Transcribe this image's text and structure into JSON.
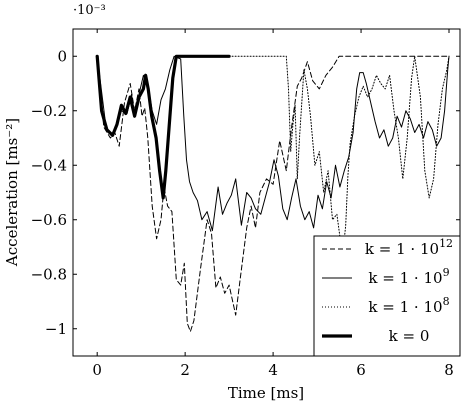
{
  "chart_data": {
    "type": "line",
    "title": "",
    "xlabel": "Time [ms]",
    "ylabel": "Acceleration [ms⁻²]",
    "y_scale_note": "·10⁻³",
    "xlim": [
      -0.55,
      8.25
    ],
    "ylim": [
      -1.1,
      0.1
    ],
    "x_ticks": [
      {
        "value": 0,
        "label": "0"
      },
      {
        "value": 2,
        "label": "2"
      },
      {
        "value": 4,
        "label": "4"
      },
      {
        "value": 6,
        "label": "6"
      },
      {
        "value": 8,
        "label": "8"
      }
    ],
    "y_ticks": [
      {
        "value": 0,
        "label": "0"
      },
      {
        "value": -0.2,
        "label": "−0.2"
      },
      {
        "value": -0.4,
        "label": "−0.4"
      },
      {
        "value": -0.6,
        "label": "−0.6"
      },
      {
        "value": -0.8,
        "label": "−0.8"
      },
      {
        "value": -1,
        "label": "−1"
      }
    ],
    "legend_position": "bottom-right",
    "series": [
      {
        "name": "k = 1 · 10¹²",
        "legend_text": "k = 1 · 10",
        "legend_exponent": "12",
        "style": "dashed",
        "color": "#000000",
        "points": [
          [
            0,
            0
          ],
          [
            0.15,
            -0.26
          ],
          [
            0.3,
            -0.3
          ],
          [
            0.4,
            -0.28
          ],
          [
            0.5,
            -0.33
          ],
          [
            0.62,
            -0.17
          ],
          [
            0.75,
            -0.1
          ],
          [
            0.85,
            -0.2
          ],
          [
            0.95,
            -0.12
          ],
          [
            1.02,
            -0.22
          ],
          [
            1.08,
            -0.19
          ],
          [
            1.15,
            -0.3
          ],
          [
            1.25,
            -0.55
          ],
          [
            1.35,
            -0.67
          ],
          [
            1.45,
            -0.6
          ],
          [
            1.52,
            -0.48
          ],
          [
            1.6,
            -0.55
          ],
          [
            1.7,
            -0.57
          ],
          [
            1.8,
            -0.82
          ],
          [
            1.9,
            -0.84
          ],
          [
            1.98,
            -0.76
          ],
          [
            2.05,
            -0.98
          ],
          [
            2.12,
            -1.01
          ],
          [
            2.2,
            -0.97
          ],
          [
            2.35,
            -0.78
          ],
          [
            2.5,
            -0.6
          ],
          [
            2.6,
            -0.65
          ],
          [
            2.7,
            -0.85
          ],
          [
            2.8,
            -0.81
          ],
          [
            2.9,
            -0.87
          ],
          [
            3.0,
            -0.84
          ],
          [
            3.15,
            -0.95
          ],
          [
            3.25,
            -0.82
          ],
          [
            3.4,
            -0.63
          ],
          [
            3.5,
            -0.55
          ],
          [
            3.6,
            -0.63
          ],
          [
            3.7,
            -0.5
          ],
          [
            3.85,
            -0.45
          ],
          [
            4.0,
            -0.47
          ],
          [
            4.15,
            -0.31
          ],
          [
            4.3,
            -0.42
          ],
          [
            4.42,
            -0.26
          ],
          [
            4.55,
            -0.11
          ],
          [
            4.65,
            -0.08
          ],
          [
            4.78,
            -0.02
          ],
          [
            4.9,
            -0.09
          ],
          [
            5.05,
            -0.12
          ],
          [
            5.2,
            -0.07
          ],
          [
            5.35,
            -0.04
          ],
          [
            5.5,
            0
          ],
          [
            8.0,
            0
          ]
        ]
      },
      {
        "name": "k = 1 · 10⁹",
        "legend_text": "k = 1 · 10",
        "legend_exponent": "9",
        "style": "solid",
        "color": "#000000",
        "points": [
          [
            0,
            0
          ],
          [
            0.2,
            -0.26
          ],
          [
            0.32,
            -0.29
          ],
          [
            0.42,
            -0.27
          ],
          [
            0.55,
            -0.2
          ],
          [
            0.68,
            -0.21
          ],
          [
            0.78,
            -0.14
          ],
          [
            0.86,
            -0.22
          ],
          [
            0.95,
            -0.14
          ],
          [
            1.05,
            -0.07
          ],
          [
            1.15,
            -0.1
          ],
          [
            1.25,
            -0.2
          ],
          [
            1.35,
            -0.25
          ],
          [
            1.45,
            -0.16
          ],
          [
            1.55,
            -0.12
          ],
          [
            1.65,
            -0.05
          ],
          [
            1.75,
            0
          ],
          [
            1.9,
            -0.01
          ],
          [
            1.97,
            -0.22
          ],
          [
            2.03,
            -0.38
          ],
          [
            2.1,
            -0.46
          ],
          [
            2.18,
            -0.5
          ],
          [
            2.28,
            -0.53
          ],
          [
            2.38,
            -0.6
          ],
          [
            2.5,
            -0.57
          ],
          [
            2.62,
            -0.64
          ],
          [
            2.75,
            -0.48
          ],
          [
            2.85,
            -0.58
          ],
          [
            2.95,
            -0.54
          ],
          [
            3.05,
            -0.51
          ],
          [
            3.15,
            -0.45
          ],
          [
            3.28,
            -0.62
          ],
          [
            3.4,
            -0.5
          ],
          [
            3.5,
            -0.52
          ],
          [
            3.6,
            -0.56
          ],
          [
            3.72,
            -0.58
          ],
          [
            3.82,
            -0.52
          ],
          [
            3.92,
            -0.46
          ],
          [
            4.02,
            -0.38
          ],
          [
            4.12,
            -0.44
          ],
          [
            4.22,
            -0.56
          ],
          [
            4.32,
            -0.6
          ],
          [
            4.42,
            -0.52
          ],
          [
            4.52,
            -0.45
          ],
          [
            4.62,
            -0.55
          ],
          [
            4.72,
            -0.6
          ],
          [
            4.82,
            -0.57
          ],
          [
            4.92,
            -0.63
          ],
          [
            5.02,
            -0.51
          ],
          [
            5.12,
            -0.56
          ],
          [
            5.22,
            -0.46
          ],
          [
            5.32,
            -0.52
          ],
          [
            5.42,
            -0.4
          ],
          [
            5.52,
            -0.48
          ],
          [
            5.62,
            -0.42
          ],
          [
            5.72,
            -0.37
          ],
          [
            5.82,
            -0.28
          ],
          [
            5.9,
            -0.12
          ],
          [
            5.97,
            -0.06
          ],
          [
            6.05,
            -0.06
          ],
          [
            6.12,
            -0.1
          ],
          [
            6.22,
            -0.17
          ],
          [
            6.32,
            -0.24
          ],
          [
            6.42,
            -0.3
          ],
          [
            6.52,
            -0.27
          ],
          [
            6.62,
            -0.33
          ],
          [
            6.72,
            -0.3
          ],
          [
            6.82,
            -0.22
          ],
          [
            6.92,
            -0.26
          ],
          [
            7.02,
            -0.2
          ],
          [
            7.12,
            -0.23
          ],
          [
            7.22,
            -0.28
          ],
          [
            7.32,
            -0.25
          ],
          [
            7.42,
            -0.3
          ],
          [
            7.52,
            -0.24
          ],
          [
            7.62,
            -0.27
          ],
          [
            7.72,
            -0.33
          ],
          [
            7.82,
            -0.3
          ],
          [
            7.9,
            -0.2
          ],
          [
            7.97,
            -0.05
          ],
          [
            8.0,
            0
          ]
        ]
      },
      {
        "name": "k = 1 · 10⁸",
        "legend_text": "k = 1 · 10",
        "legend_exponent": "8",
        "style": "dotted",
        "color": "#000000",
        "points": [
          [
            3.0,
            0
          ],
          [
            4.3,
            0
          ],
          [
            4.35,
            -0.12
          ],
          [
            4.4,
            -0.35
          ],
          [
            4.45,
            -0.25
          ],
          [
            4.5,
            -0.18
          ],
          [
            4.55,
            -0.45
          ],
          [
            4.6,
            -0.3
          ],
          [
            4.7,
            -0.05
          ],
          [
            4.78,
            -0.12
          ],
          [
            4.85,
            -0.22
          ],
          [
            4.95,
            -0.4
          ],
          [
            5.05,
            -0.35
          ],
          [
            5.15,
            -0.5
          ],
          [
            5.25,
            -0.42
          ],
          [
            5.35,
            -0.6
          ],
          [
            5.45,
            -0.58
          ],
          [
            5.55,
            -0.7
          ],
          [
            5.6,
            -0.7
          ],
          [
            5.65,
            -0.62
          ],
          [
            5.7,
            -0.44
          ],
          [
            5.75,
            -0.32
          ],
          [
            5.85,
            -0.22
          ],
          [
            5.95,
            -0.15
          ],
          [
            6.05,
            -0.11
          ],
          [
            6.15,
            -0.15
          ],
          [
            6.25,
            -0.12
          ],
          [
            6.35,
            -0.07
          ],
          [
            6.45,
            -0.1
          ],
          [
            6.55,
            -0.12
          ],
          [
            6.65,
            -0.07
          ],
          [
            6.75,
            -0.2
          ],
          [
            6.85,
            -0.3
          ],
          [
            6.95,
            -0.45
          ],
          [
            7.05,
            -0.3
          ],
          [
            7.15,
            -0.08
          ],
          [
            7.22,
            0
          ],
          [
            7.35,
            -0.15
          ],
          [
            7.45,
            -0.42
          ],
          [
            7.55,
            -0.52
          ],
          [
            7.65,
            -0.45
          ],
          [
            7.75,
            -0.25
          ],
          [
            7.85,
            -0.12
          ],
          [
            7.95,
            -0.05
          ],
          [
            8.0,
            0
          ]
        ]
      },
      {
        "name": "k = 0",
        "legend_text": "k = 0",
        "legend_exponent": "",
        "style": "thick",
        "color": "#000000",
        "points": [
          [
            0,
            0
          ],
          [
            0.1,
            -0.2
          ],
          [
            0.22,
            -0.27
          ],
          [
            0.35,
            -0.29
          ],
          [
            0.45,
            -0.25
          ],
          [
            0.55,
            -0.18
          ],
          [
            0.65,
            -0.21
          ],
          [
            0.75,
            -0.15
          ],
          [
            0.85,
            -0.22
          ],
          [
            0.95,
            -0.15
          ],
          [
            1.05,
            -0.12
          ],
          [
            1.1,
            -0.07
          ],
          [
            1.16,
            -0.12
          ],
          [
            1.24,
            -0.22
          ],
          [
            1.34,
            -0.3
          ],
          [
            1.42,
            -0.42
          ],
          [
            1.5,
            -0.52
          ],
          [
            1.56,
            -0.42
          ],
          [
            1.64,
            -0.25
          ],
          [
            1.72,
            -0.08
          ],
          [
            1.8,
            0
          ],
          [
            3.0,
            0
          ]
        ]
      }
    ]
  }
}
